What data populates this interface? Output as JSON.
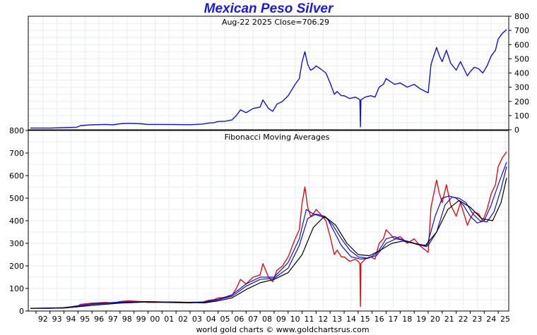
{
  "title": "Mexican Peso Silver",
  "subtitle": "Aug-22  2025   Close=706.29",
  "footer": "world gold charts © www.goldchartsrus.com",
  "colors": {
    "title": "#1a1adf",
    "price_top": "#1010e0",
    "price_bottom": "#e01010",
    "ma_blue": "#1010c8",
    "ma_black": "#000000",
    "grid": "#e6eef3"
  },
  "chart_data": [
    {
      "type": "line",
      "title": "",
      "xlabel": "",
      "ylabel": "",
      "xlim": [
        1991.45,
        2025.75
      ],
      "ylim": [
        0,
        800
      ],
      "y_axis_side": "right",
      "yticks": [
        0,
        100,
        200,
        300,
        400,
        500,
        600,
        700,
        800
      ],
      "grid": true,
      "series": [
        {
          "color": "#1010e0",
          "x": [
            1991.6,
            1993,
            1994,
            1994.9,
            1995.2,
            1996,
            1997,
            1997.5,
            1998,
            1998.6,
            1999.5,
            2000,
            2001,
            2002,
            2003,
            2003.9,
            2004.4,
            2004.7,
            2005,
            2005.5,
            2006.0,
            2006.3,
            2006.6,
            2007.0,
            2007.5,
            2008.0,
            2008.2,
            2008.6,
            2008.9,
            2009.2,
            2009.6,
            2010.0,
            2010.5,
            2010.8,
            2011.0,
            2011.2,
            2011.4,
            2011.6,
            2011.8,
            2012.0,
            2012.3,
            2012.7,
            2013.0,
            2013.3,
            2013.5,
            2013.8,
            2014.0,
            2014.4,
            2014.8,
            2015.0,
            2015.12,
            2015.16,
            2015.2,
            2015.5,
            2015.9,
            2016.2,
            2016.5,
            2016.8,
            2017.0,
            2017.3,
            2017.6,
            2018.0,
            2018.5,
            2019.0,
            2019.4,
            2019.8,
            2020.0,
            2020.2,
            2020.4,
            2020.6,
            2020.8,
            2021.0,
            2021.3,
            2021.6,
            2022.0,
            2022.3,
            2022.6,
            2022.8,
            2023.0,
            2023.3,
            2023.6,
            2023.9,
            2024.2,
            2024.5,
            2024.8,
            2025.0,
            2025.3,
            2025.6
          ],
          "y": [
            12,
            12,
            15,
            18,
            30,
            35,
            38,
            35,
            42,
            45,
            42,
            38,
            38,
            37,
            36,
            40,
            48,
            50,
            58,
            60,
            70,
            100,
            140,
            120,
            150,
            160,
            210,
            150,
            130,
            180,
            200,
            240,
            320,
            360,
            480,
            550,
            460,
            420,
            430,
            450,
            430,
            400,
            330,
            250,
            270,
            240,
            240,
            220,
            230,
            220,
            210,
            20,
            210,
            230,
            240,
            230,
            300,
            320,
            360,
            340,
            320,
            330,
            300,
            320,
            290,
            270,
            260,
            460,
            520,
            580,
            520,
            480,
            560,
            470,
            420,
            480,
            420,
            380,
            410,
            440,
            430,
            400,
            450,
            520,
            560,
            640,
            680,
            706
          ]
        }
      ]
    },
    {
      "type": "line",
      "title": "Fibonacci Moving Averages",
      "xlabel": "",
      "ylabel": "",
      "xlim": [
        1991.45,
        2025.75
      ],
      "ylim": [
        0,
        800
      ],
      "y_axis_side": "left",
      "yticks": [
        0,
        100,
        200,
        300,
        400,
        500,
        600,
        700,
        800
      ],
      "grid": true,
      "x_tick_labels": [
        "92",
        "93",
        "94",
        "95",
        "96",
        "97",
        "98",
        "99",
        "00",
        "01",
        "02",
        "03",
        "04",
        "05",
        "06",
        "07",
        "08",
        "09",
        "10",
        "11",
        "12",
        "13",
        "14",
        "15",
        "16",
        "17",
        "18",
        "19",
        "20",
        "21",
        "22",
        "23",
        "24",
        "25"
      ],
      "series": [
        {
          "color": "#e01010",
          "x": [
            1991.6,
            1993,
            1994,
            1994.9,
            1995.2,
            1996,
            1997,
            1997.5,
            1998,
            1998.6,
            1999.5,
            2000,
            2001,
            2002,
            2003,
            2003.9,
            2004.4,
            2004.7,
            2005,
            2005.5,
            2006.0,
            2006.3,
            2006.6,
            2007.0,
            2007.5,
            2008.0,
            2008.2,
            2008.6,
            2008.9,
            2009.2,
            2009.6,
            2010.0,
            2010.5,
            2010.8,
            2011.0,
            2011.2,
            2011.4,
            2011.6,
            2011.8,
            2012.0,
            2012.3,
            2012.7,
            2013.0,
            2013.3,
            2013.5,
            2013.8,
            2014.0,
            2014.4,
            2014.8,
            2015.0,
            2015.12,
            2015.16,
            2015.2,
            2015.5,
            2015.9,
            2016.2,
            2016.5,
            2016.8,
            2017.0,
            2017.3,
            2017.6,
            2018.0,
            2018.5,
            2019.0,
            2019.4,
            2019.8,
            2020.0,
            2020.2,
            2020.4,
            2020.6,
            2020.8,
            2021.0,
            2021.3,
            2021.6,
            2022.0,
            2022.3,
            2022.6,
            2022.8,
            2023.0,
            2023.3,
            2023.6,
            2023.9,
            2024.2,
            2024.5,
            2024.8,
            2025.0,
            2025.3,
            2025.6
          ],
          "y": [
            12,
            12,
            15,
            18,
            30,
            35,
            38,
            35,
            42,
            45,
            42,
            38,
            38,
            37,
            36,
            40,
            48,
            50,
            58,
            60,
            70,
            100,
            140,
            120,
            150,
            160,
            210,
            150,
            130,
            180,
            200,
            240,
            320,
            360,
            480,
            550,
            460,
            420,
            430,
            450,
            430,
            400,
            330,
            250,
            270,
            240,
            240,
            220,
            230,
            220,
            210,
            20,
            210,
            230,
            240,
            230,
            300,
            320,
            360,
            340,
            320,
            330,
            300,
            320,
            290,
            270,
            260,
            460,
            520,
            580,
            520,
            480,
            560,
            470,
            420,
            480,
            420,
            380,
            410,
            440,
            430,
            400,
            450,
            520,
            560,
            640,
            680,
            706
          ]
        },
        {
          "color": "#1010c8",
          "x": [
            1991.6,
            1994,
            1996,
            1998,
            2000,
            2002,
            2004,
            2005,
            2006,
            2007,
            2008,
            2009,
            2010,
            2010.8,
            2011.3,
            2011.8,
            2012.3,
            2012.8,
            2013.3,
            2013.8,
            2014.5,
            2015.2,
            2015.8,
            2016.4,
            2017,
            2017.6,
            2018.4,
            2019.2,
            2019.9,
            2020.5,
            2021.0,
            2021.5,
            2022.0,
            2022.5,
            2023.0,
            2023.5,
            2024.0,
            2024.5,
            2025.0,
            2025.6
          ],
          "y": [
            12,
            15,
            32,
            40,
            42,
            38,
            40,
            52,
            72,
            120,
            150,
            150,
            215,
            320,
            450,
            430,
            420,
            410,
            350,
            290,
            240,
            230,
            235,
            260,
            320,
            330,
            310,
            295,
            285,
            420,
            500,
            510,
            500,
            470,
            420,
            390,
            400,
            470,
            560,
            660
          ]
        },
        {
          "color": "#1010c8",
          "x": [
            1991.6,
            1994,
            1996,
            1998,
            2000,
            2002,
            2004,
            2005,
            2006,
            2007,
            2008,
            2009,
            2010,
            2010.8,
            2011.4,
            2012.0,
            2012.6,
            2013.2,
            2013.8,
            2014.4,
            2015.0,
            2015.6,
            2016.3,
            2017,
            2017.7,
            2018.5,
            2019.3,
            2020.0,
            2020.6,
            2021.2,
            2021.7,
            2022.2,
            2022.7,
            2023.2,
            2023.7,
            2024.2,
            2024.7,
            2025.2,
            2025.6
          ],
          "y": [
            12,
            14,
            30,
            38,
            42,
            39,
            38,
            50,
            65,
            110,
            140,
            145,
            190,
            290,
            410,
            430,
            420,
            380,
            320,
            270,
            240,
            235,
            245,
            300,
            320,
            310,
            295,
            290,
            350,
            470,
            505,
            500,
            480,
            430,
            400,
            395,
            440,
            540,
            640
          ]
        },
        {
          "color": "#000000",
          "x": [
            1991.6,
            1994,
            1996,
            1998,
            2000,
            2002,
            2004,
            2005,
            2006,
            2007,
            2008,
            2009,
            2010,
            2011,
            2011.8,
            2012.6,
            2013.4,
            2014.2,
            2015,
            2015.8,
            2016.6,
            2017.4,
            2018.2,
            2019,
            2019.8,
            2020.6,
            2021.4,
            2022.2,
            2023.0,
            2023.8,
            2024.6,
            2025.2,
            2025.6
          ],
          "y": [
            12,
            13,
            25,
            35,
            40,
            40,
            36,
            45,
            58,
            95,
            125,
            140,
            170,
            250,
            370,
            420,
            380,
            300,
            250,
            245,
            270,
            300,
            310,
            300,
            290,
            350,
            450,
            490,
            460,
            410,
            400,
            480,
            590
          ]
        }
      ]
    }
  ]
}
